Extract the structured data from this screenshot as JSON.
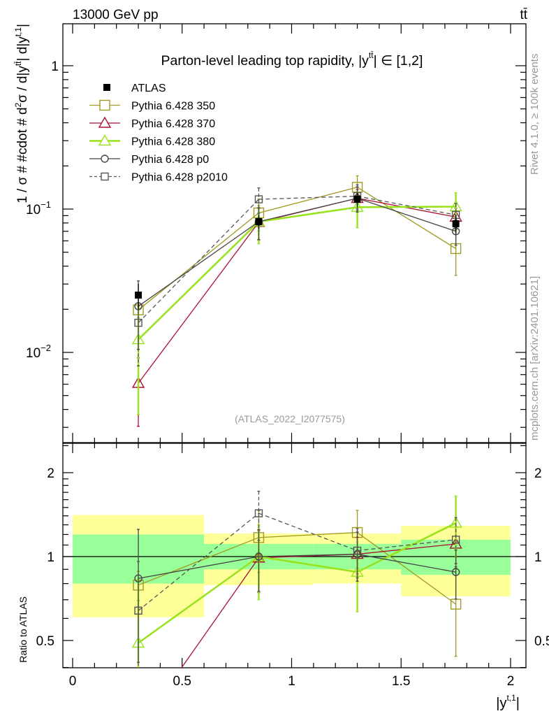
{
  "chart_data": {
    "type": "scatter",
    "header_left": "13000 GeV pp",
    "header_right": "tt̄",
    "title": {
      "pre": "Parton-level leading top rapidity, |y",
      "sup": "tt̄",
      "post": "| ∈ [1,2]"
    },
    "analysis_label": "(ATLAS_2022_I2077575)",
    "side_label_top": "Rivet 4.1.0, ≥ 100k events",
    "side_label_bottom": "mcplots.cern.ch [arXiv:2401.10621]",
    "ylabel": {
      "p1": "1 / σ # #cdot # d",
      "sup1": "2",
      "p2": "σ / d|y",
      "sup2": "tt̄",
      "p3": "| d|y",
      "sup3": "t,1",
      "p4": "|"
    },
    "ratio_ylabel": "Ratio to ATLAS",
    "xlabel": {
      "pre": "|y",
      "sup": "t,1",
      "post": "|"
    },
    "xlim": [
      0,
      2
    ],
    "ylim": [
      0.00235,
      1.96
    ],
    "yscale": "log",
    "ratio_ylim": [
      0.4,
      2.55
    ],
    "xticks": [
      "0",
      "0.5",
      "1",
      "1.5",
      "2"
    ],
    "xtick_values": [
      0,
      0.5,
      1,
      1.5,
      2
    ],
    "yticks": [
      {
        "value": 1,
        "base": "1",
        "exp": ""
      },
      {
        "value": 0.1,
        "base": "10",
        "exp": "−1"
      },
      {
        "value": 0.01,
        "base": "10",
        "exp": "−2"
      }
    ],
    "ratio_yticks": [
      {
        "value": 0.5,
        "label": "0.5"
      },
      {
        "value": 1,
        "label": "1"
      },
      {
        "value": 2,
        "label": "2"
      }
    ],
    "x": [
      0.3,
      0.85,
      1.3,
      1.75
    ],
    "bins": [
      [
        0,
        0.6
      ],
      [
        0.6,
        1.1
      ],
      [
        1.1,
        1.5
      ],
      [
        1.5,
        2.0
      ]
    ],
    "data": {
      "name": "ATLAS",
      "values": [
        0.0251,
        0.0817,
        0.117,
        0.079
      ],
      "band_1sigma": [
        [
          0.8,
          1.2
        ],
        [
          0.9,
          1.11
        ],
        [
          0.9,
          1.11
        ],
        [
          0.86,
          1.15
        ]
      ],
      "band_2sigma": [
        [
          0.605,
          1.41
        ],
        [
          0.79,
          1.21
        ],
        [
          0.8,
          1.21
        ],
        [
          0.72,
          1.29
        ]
      ],
      "color": "#000000"
    },
    "series": [
      {
        "name": "Pythia 6.428 350",
        "values": [
          0.0198,
          0.094,
          0.142,
          0.053
        ],
        "ratio": [
          0.79,
          1.17,
          1.22,
          0.675
        ],
        "relerr": [
          0.12,
          0.25,
          0.2,
          0.35
        ],
        "color": "#a09a20",
        "marker": "square-open",
        "dash": false,
        "width": 1.3
      },
      {
        "name": "Pythia 6.428 370",
        "values": [
          0.0061,
          0.081,
          0.119,
          0.088
        ],
        "ratio": [
          0.24,
          0.99,
          1.02,
          1.11
        ],
        "relerr": [
          0.5,
          0.25,
          0.15,
          0.15
        ],
        "color": "#aa1030",
        "marker": "triangle-open",
        "dash": false,
        "width": 1.3
      },
      {
        "name": "Pythia 6.428 380",
        "values": [
          0.0123,
          0.0817,
          0.103,
          0.104
        ],
        "ratio": [
          0.49,
          1.0,
          0.88,
          1.32
        ],
        "relerr": [
          0.7,
          0.3,
          0.28,
          0.25
        ],
        "color": "#99e31e",
        "marker": "triangle-open",
        "dash": false,
        "width": 2.6
      },
      {
        "name": "Pythia 6.428 p0",
        "values": [
          0.021,
          0.0817,
          0.119,
          0.07
        ],
        "ratio": [
          0.835,
          1.0,
          1.02,
          0.88
        ],
        "relerr": [
          0.5,
          0.25,
          0.2,
          0.2
        ],
        "color": "#444444",
        "marker": "circle-open",
        "dash": false,
        "width": 1.3
      },
      {
        "name": "Pythia 6.428 p2010",
        "values": [
          0.0161,
          0.117,
          0.123,
          0.091
        ],
        "ratio": [
          0.64,
          1.43,
          1.05,
          1.15
        ],
        "relerr": [
          0.5,
          0.2,
          0.2,
          0.2
        ],
        "color": "#555555",
        "marker": "square-open-small",
        "dash": true,
        "width": 1.3
      }
    ]
  }
}
